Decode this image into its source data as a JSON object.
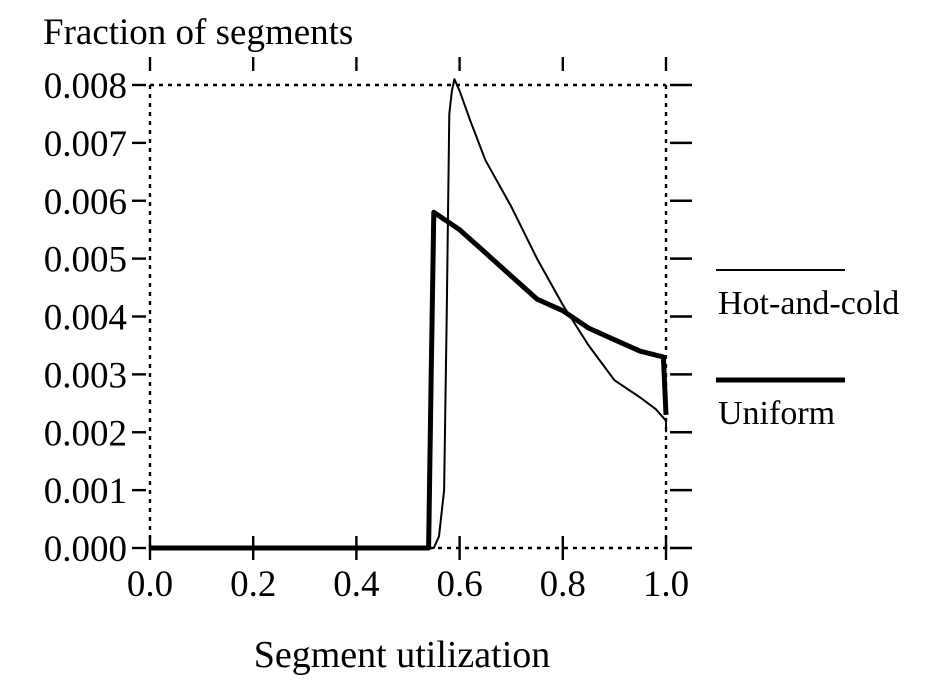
{
  "chart_data": {
    "type": "line",
    "title": "Fraction of segments",
    "xlabel": "Segment utilization",
    "ylabel": "",
    "xlim": [
      0.0,
      1.0
    ],
    "ylim": [
      0.0,
      0.008
    ],
    "xticks": [
      0.0,
      0.2,
      0.4,
      0.6,
      0.8,
      1.0
    ],
    "xtick_labels": [
      "0.0",
      "0.2",
      "0.4",
      "0.6",
      "0.8",
      "1.0"
    ],
    "yticks": [
      0.0,
      0.001,
      0.002,
      0.003,
      0.004,
      0.005,
      0.006,
      0.007,
      0.008
    ],
    "ytick_labels": [
      "0.000",
      "0.001",
      "0.002",
      "0.003",
      "0.004",
      "0.005",
      "0.006",
      "0.007",
      "0.008"
    ],
    "grid": false,
    "legend_position": "right",
    "series": [
      {
        "name": "Hot-and-cold",
        "style": "thin",
        "color": "#000000",
        "x": [
          0.0,
          0.2,
          0.4,
          0.55,
          0.56,
          0.57,
          0.575,
          0.58,
          0.585,
          0.59,
          0.6,
          0.62,
          0.65,
          0.7,
          0.75,
          0.8,
          0.85,
          0.9,
          0.95,
          0.98,
          1.0,
          1.0
        ],
        "y": [
          0.0,
          0.0,
          0.0,
          0.0,
          0.0002,
          0.001,
          0.004,
          0.0075,
          0.0079,
          0.0081,
          0.0079,
          0.0074,
          0.0067,
          0.0059,
          0.005,
          0.0042,
          0.0035,
          0.0029,
          0.0026,
          0.0024,
          0.0022,
          0.002
        ]
      },
      {
        "name": "Uniform",
        "style": "thick",
        "color": "#000000",
        "x": [
          0.0,
          0.2,
          0.4,
          0.54,
          0.545,
          0.55,
          0.6,
          0.65,
          0.7,
          0.75,
          0.8,
          0.85,
          0.9,
          0.95,
          0.995,
          1.0
        ],
        "y": [
          0.0,
          0.0,
          0.0,
          0.0,
          0.003,
          0.0058,
          0.0055,
          0.0051,
          0.0047,
          0.0043,
          0.0041,
          0.0038,
          0.0036,
          0.0034,
          0.0033,
          0.0023
        ]
      }
    ]
  }
}
